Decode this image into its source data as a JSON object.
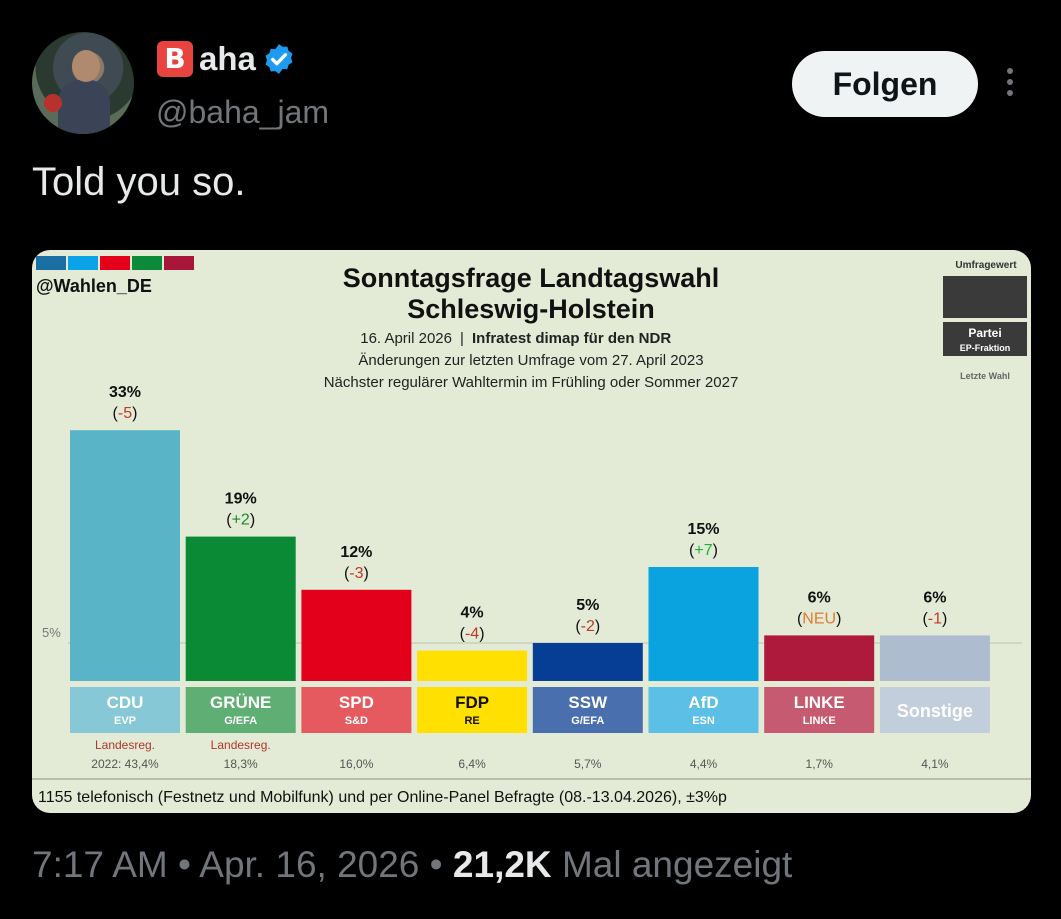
{
  "tweet": {
    "author_name": "aha",
    "author_emoji_letter": "B",
    "handle": "@baha_jam",
    "follow_label": "Folgen",
    "text": "Told you so.",
    "time": "7:17 AM",
    "separator": "•",
    "date": "Apr. 16, 2026",
    "views": "21,2K",
    "views_label": "Mal angezeigt"
  },
  "chart_data": {
    "type": "bar",
    "watermark": "@Wahlen_DE",
    "title_line1": "Sonntagsfrage Landtagswahl",
    "title_line2": "Schleswig-Holstein",
    "date_text": "16. April 2026",
    "institute": "Infratest dimap für den NDR",
    "subtitle1": "Änderungen zur letzten Umfrage vom 27. April 2023",
    "subtitle2": "Nächster regulärer Wahltermin im Frühling oder Sommer 2027",
    "legend": {
      "value": "Umfragewert",
      "party": "Partei",
      "fraction": "EP-Fraktion",
      "last": "Letzte Wahl"
    },
    "threshold_label": "5%",
    "threshold": 5,
    "ylim": [
      0,
      35
    ],
    "footer": "1155 telefonisch (Festnetz und Mobilfunk) und per Online-Panel Befragte (08.-13.04.2026), ±3%p",
    "header_colors": [
      "#1a6fa3",
      "#0aa3e8",
      "#e5001a",
      "#0b8a3a",
      "#a8163a"
    ],
    "categories": [
      "CDU",
      "GRÜNE",
      "SPD",
      "FDP",
      "SSW",
      "AfD",
      "LINKE",
      "Sonstige"
    ],
    "bars": [
      {
        "party": "CDU",
        "value": 33,
        "label": "33%",
        "change": "-5",
        "change_color": "#c0392b",
        "fraction": "EVP",
        "color": "#5ab4c8",
        "box": "#86c8d6",
        "box_text": "#ffffff",
        "last": "2022: 43,4%",
        "note": "Landesreg."
      },
      {
        "party": "GRÜNE",
        "value": 19,
        "label": "19%",
        "change": "+2",
        "change_color": "#1b8a2e",
        "fraction": "G/EFA",
        "color": "#0a8a34",
        "box": "#5fae73",
        "box_text": "#ffffff",
        "last": "18,3%",
        "note": "Landesreg."
      },
      {
        "party": "SPD",
        "value": 12,
        "label": "12%",
        "change": "-3",
        "change_color": "#c0392b",
        "fraction": "S&D",
        "color": "#e3001a",
        "box": "#e55a5e",
        "box_text": "#ffffff",
        "last": "16,0%",
        "note": ""
      },
      {
        "party": "FDP",
        "value": 4,
        "label": "4%",
        "change": "-4",
        "change_color": "#c0392b",
        "fraction": "RE",
        "color": "#ffe000",
        "box": "#ffe000",
        "box_text": "#111111",
        "last": "6,4%",
        "note": ""
      },
      {
        "party": "SSW",
        "value": 5,
        "label": "5%",
        "change": "-2",
        "change_color": "#c0392b",
        "fraction": "G/EFA",
        "color": "#063e96",
        "box": "#4a6fae",
        "box_text": "#ffffff",
        "last": "5,7%",
        "note": ""
      },
      {
        "party": "AfD",
        "value": 15,
        "label": "15%",
        "change": "+7",
        "change_color": "#1bb23a",
        "fraction": "ESN",
        "color": "#0aa3e0",
        "box": "#5cbfe6",
        "box_text": "#ffffff",
        "last": "4,4%",
        "note": ""
      },
      {
        "party": "LINKE",
        "value": 6,
        "label": "6%",
        "change": "NEU",
        "change_color": "#e07a2e",
        "fraction": "LINKE",
        "color": "#ad1a3c",
        "box": "#c65a70",
        "box_text": "#ffffff",
        "last": "1,7%",
        "note": ""
      },
      {
        "party": "Sonstige",
        "value": 6,
        "label": "6%",
        "change": "-1",
        "change_color": "#c0392b",
        "fraction": "",
        "color": "#aebcd0",
        "box": "#c2cedb",
        "box_text": "#ffffff",
        "last": "4,1%",
        "note": ""
      }
    ]
  }
}
